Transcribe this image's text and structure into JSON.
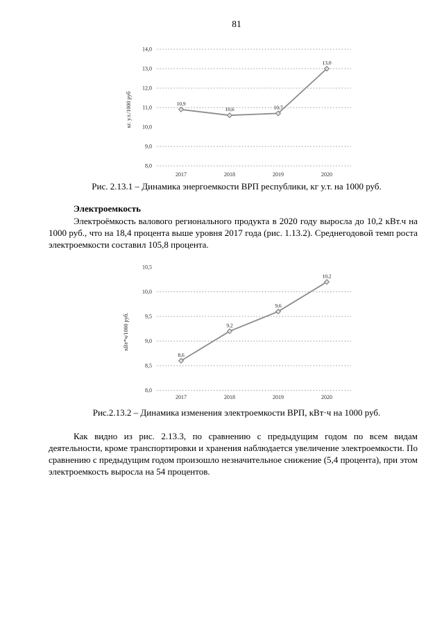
{
  "page": {
    "number": "81"
  },
  "figures": {
    "fig1_caption": "Рис. 2.13.1 – Динамика энергоемкости ВРП республики, кг у.т. на 1000 руб.",
    "fig2_caption": "Рис.2.13.2 – Динамика изменения электроемкости ВРП, кВт·ч на 1000 руб."
  },
  "sections": {
    "heading": "Электроемкость",
    "para1": "Электроёмкость валового регионального продукта в 2020 году выросла до 10,2 кВт.ч на 1000 руб., что на 18,4 процента выше уровня 2017 года (рис. 1.13.2). Среднегодовой темп роста электроемкости составил 105,8 процента.",
    "para2": "Как видно из рис. 2.13.3, по сравнению с предыдущим годом по всем видам деятельности, кроме транспортировки и хранения наблюдается увеличение электроемкости. По сравнению с предыдущим годом произошло незначительное снижение (5,4 процента), при этом электроемкость выросла на 54 процентов."
  },
  "chart_data": [
    {
      "type": "line",
      "title": "",
      "categories": [
        "2017",
        "2018",
        "2019",
        "2020"
      ],
      "values": [
        10.9,
        10.6,
        10.7,
        13.0
      ],
      "point_labels": [
        "10,9",
        "10,6",
        "10,7",
        "13,0"
      ],
      "xlabel": "",
      "ylabel": "кг. у.т./1000 руб",
      "ylim": [
        8.0,
        14.0
      ],
      "ytick_step": 1.0,
      "yticks": [
        "14,0",
        "13,0",
        "12,0",
        "11,0",
        "10,0",
        "9,0",
        "8,0"
      ],
      "grid": "horizontal-dotted",
      "grid_skip_ticks": [
        "10,0"
      ],
      "legend": "none",
      "marker": "diamond",
      "line_color": "#8c8c8c"
    },
    {
      "type": "line",
      "title": "",
      "categories": [
        "2017",
        "2018",
        "2019",
        "2020"
      ],
      "values": [
        8.6,
        9.2,
        9.6,
        10.2
      ],
      "point_labels": [
        "8,6",
        "9,2",
        "9,6",
        "10,2"
      ],
      "xlabel": "",
      "ylabel": "кВт*ч/1000 руб.",
      "ylim": [
        8.0,
        10.5
      ],
      "ytick_step": 0.5,
      "yticks": [
        "10,5",
        "10,0",
        "9,5",
        "9,0",
        "8,5",
        "8,0"
      ],
      "grid": "horizontal-dotted",
      "grid_skip_ticks": [
        "10,5"
      ],
      "legend": "none",
      "marker": "diamond",
      "line_color": "#8c8c8c"
    }
  ],
  "colors": {
    "page_background": "#ffffff",
    "text": "#000000",
    "chart_line": "#8c8c8c",
    "chart_grid": "#9c9c9c"
  }
}
